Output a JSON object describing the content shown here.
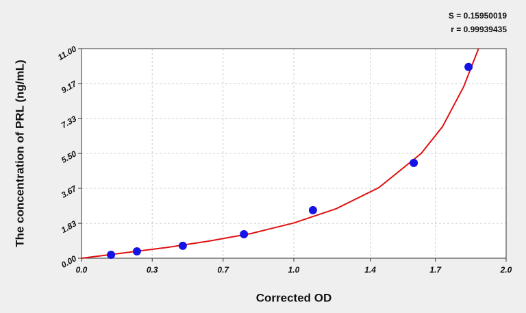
{
  "chart_data": {
    "type": "scatter",
    "x_label": "Corrected OD",
    "y_label": "The concentration of PRL (ng/mL)",
    "annotations": [
      "S = 0.15950019",
      "r = 0.99939435"
    ],
    "x": [
      0.139,
      0.261,
      0.477,
      0.765,
      1.09,
      1.565,
      1.823
    ],
    "values": [
      0.18,
      0.36,
      0.65,
      1.26,
      2.52,
      5.0,
      10.04
    ],
    "color": "#1414e6",
    "fit": {
      "color": "#e01010",
      "x": [
        0,
        0.2,
        0.4,
        0.6,
        0.8,
        1.0,
        1.2,
        1.4,
        1.6,
        1.7,
        1.8,
        1.87
      ],
      "values": [
        0,
        0.28,
        0.56,
        0.9,
        1.3,
        1.85,
        2.6,
        3.7,
        5.5,
        6.9,
        9.0,
        11.0
      ]
    },
    "xlim": [
      0,
      2.0
    ],
    "xticks": [
      {
        "value": 0,
        "label": "0.0"
      },
      {
        "value": 0.333,
        "label": "0.3"
      },
      {
        "value": 0.667,
        "label": "0.7"
      },
      {
        "value": 1.0,
        "label": "1.0"
      },
      {
        "value": 1.36,
        "label": "1.4"
      },
      {
        "value": 1.667,
        "label": "1.7"
      },
      {
        "value": 2.0,
        "label": "2.0"
      }
    ],
    "ylim": [
      0,
      11
    ],
    "yticks": [
      {
        "value": 0,
        "label": "0.00"
      },
      1.83,
      3.67,
      {
        "value": 5.5,
        "label": "5.50"
      },
      7.33,
      9.17,
      {
        "value": 11,
        "label": "11.00"
      }
    ],
    "grid": true
  }
}
